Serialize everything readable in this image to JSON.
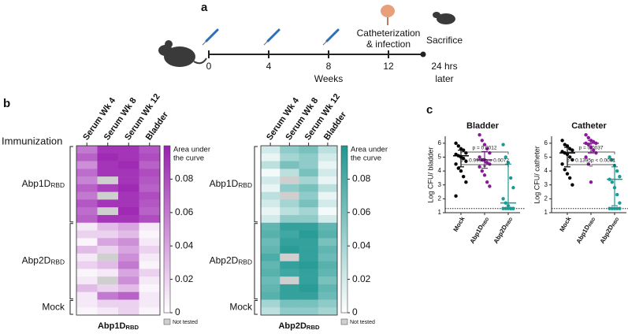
{
  "panel_labels": [
    "a",
    "b",
    "c"
  ],
  "timeline": {
    "weeks": [
      0,
      4,
      8,
      12
    ],
    "axis_label": "Weeks",
    "event_label": [
      "Catheterization",
      "& infection"
    ],
    "end_label": "Sacrifice",
    "end_time": [
      "24 hrs",
      "later"
    ]
  },
  "heatmaps": [
    {
      "row_header": "Immunization",
      "columns": [
        "Serum Wk 4",
        "Serum Wk 8",
        "Serum Wk 12",
        "Bladder"
      ],
      "row_groups": [
        {
          "label": {
            "main": "Abp1D",
            "sub": "RBD"
          },
          "rows": [
            [
              0.06,
              0.09,
              0.09,
              0.075
            ],
            [
              0.07,
              0.095,
              0.09,
              0.08
            ],
            [
              0.05,
              0.09,
              0.095,
              0.07
            ],
            [
              0.065,
              0.09,
              0.09,
              0.08
            ],
            [
              0.055,
              null,
              0.09,
              0.075
            ],
            [
              0.07,
              0.085,
              0.095,
              0.07
            ],
            [
              0.06,
              null,
              0.09,
              0.08
            ],
            [
              0.075,
              0.09,
              0.09,
              0.075
            ],
            [
              0.065,
              null,
              0.095,
              0.07
            ],
            [
              0.07,
              0.09,
              0.09,
              0.08
            ]
          ]
        },
        {
          "label": {
            "main": "Abp2D",
            "sub": "RBD"
          },
          "rows": [
            [
              0.01,
              0.03,
              0.04,
              0.01
            ],
            [
              0.02,
              0.02,
              0.03,
              0.005
            ],
            [
              0.005,
              0.04,
              0.05,
              0.01
            ],
            [
              0.03,
              0.02,
              0.04,
              0.02
            ],
            [
              0.01,
              null,
              0.05,
              0.01
            ],
            [
              0.02,
              0.03,
              0.06,
              0.005
            ],
            [
              0.005,
              0.01,
              0.04,
              0.02
            ],
            [
              0.01,
              null,
              0.05,
              0.01
            ],
            [
              0.03,
              0.02,
              0.03,
              0.005
            ],
            [
              0.01,
              0.06,
              0.07,
              0.01
            ]
          ]
        },
        {
          "label": "Mock",
          "rows": [
            [
              0.01,
              0.02,
              0.02,
              0.01
            ],
            [
              0.005,
              0.01,
              0.02,
              0.005
            ]
          ]
        }
      ],
      "colorbar": {
        "label": [
          "Area under",
          "the curve"
        ],
        "range": [
          0,
          0.1
        ],
        "ticks": [
          0,
          0.02,
          0.04,
          0.06,
          0.08
        ],
        "color": "#9a1fb0"
      },
      "not_tested": "Not tested",
      "title": {
        "main": "Abp1D",
        "sub": "RBD"
      }
    },
    {
      "columns": [
        "Serum Wk 4",
        "Serum Wk 8",
        "Serum Wk 12",
        "Bladder"
      ],
      "row_groups": [
        {
          "label": {
            "main": "Abp1D",
            "sub": "RBD"
          },
          "rows": [
            [
              0.02,
              0.05,
              0.06,
              0.03
            ],
            [
              0.01,
              0.04,
              0.05,
              0.02
            ],
            [
              0.03,
              0.06,
              0.05,
              0.01
            ],
            [
              0.005,
              0.03,
              0.06,
              0.02
            ],
            [
              0.02,
              null,
              0.04,
              0.01
            ],
            [
              0.01,
              0.05,
              0.06,
              0.03
            ],
            [
              0.03,
              null,
              0.05,
              0.01
            ],
            [
              0.02,
              0.04,
              0.06,
              0.02
            ],
            [
              0.01,
              0.03,
              0.04,
              0.005
            ],
            [
              0.02,
              0.05,
              0.05,
              0.02
            ]
          ]
        },
        {
          "label": {
            "main": "Abp2D",
            "sub": "RBD"
          },
          "rows": [
            [
              0.07,
              0.09,
              0.09,
              0.07
            ],
            [
              0.075,
              0.085,
              0.095,
              0.075
            ],
            [
              0.065,
              0.09,
              0.09,
              0.06
            ],
            [
              0.07,
              0.095,
              0.09,
              0.07
            ],
            [
              0.08,
              null,
              0.09,
              0.065
            ],
            [
              0.07,
              0.09,
              0.095,
              0.075
            ],
            [
              0.075,
              0.085,
              0.09,
              0.07
            ],
            [
              0.065,
              null,
              0.09,
              0.06
            ],
            [
              0.07,
              0.09,
              0.095,
              0.07
            ],
            [
              0.075,
              0.09,
              0.09,
              0.065
            ]
          ]
        },
        {
          "label": "Mock",
          "rows": [
            [
              0.04,
              0.06,
              0.06,
              0.05
            ],
            [
              0.03,
              0.05,
              0.05,
              0.04
            ]
          ]
        }
      ],
      "colorbar": {
        "label": [
          "Area under",
          "the curve"
        ],
        "range": [
          0,
          0.1
        ],
        "ticks": [
          0,
          0.02,
          0.04,
          0.06,
          0.08
        ],
        "color": "#1f9791"
      },
      "not_tested": "Not tested",
      "title": {
        "main": "Abp2D",
        "sub": "RBD"
      }
    }
  ],
  "scatter_plots": [
    {
      "title": "Bladder",
      "ylabel": "Log CFU/ bladder",
      "ylim": [
        1,
        6.5
      ],
      "yticks": [
        1,
        2,
        3,
        4,
        5,
        6
      ],
      "detection_limit": 1.3,
      "groups": [
        {
          "label": "Mock",
          "color": "#000000",
          "values": [
            6.0,
            5.8,
            5.6,
            5.5,
            5.3,
            5.2,
            5.1,
            5.0,
            4.9,
            4.7,
            4.5,
            4.2,
            4.0,
            3.6,
            3.2,
            2.2
          ],
          "median": 5.1,
          "q1": 4.3,
          "q3": 5.5
        },
        {
          "label": {
            "main": "Abp1D",
            "sub": "RBD"
          },
          "color": "#8b1a9b",
          "values": [
            6.6,
            6.2,
            5.9,
            5.6,
            5.3,
            5.0,
            4.8,
            4.8,
            4.6,
            4.5,
            4.3,
            4.0,
            3.7,
            3.2,
            2.9
          ],
          "median": 4.8,
          "q1": 4.2,
          "q3": 5.4
        },
        {
          "label": {
            "main": "Abp2D",
            "sub": "RBD"
          },
          "color": "#1a9a94",
          "values": [
            5.9,
            5.0,
            4.6,
            3.5,
            2.8,
            2.0,
            1.7,
            1.5,
            1.3,
            1.3,
            1.3,
            1.3,
            1.3,
            1.3,
            1.3
          ],
          "median": 1.7,
          "q1": 1.3,
          "q3": 4.5
        }
      ],
      "comparisons": [
        "p = 0.0012",
        "p > 0.9999",
        "p = 0.0072"
      ]
    },
    {
      "title": "Catheter",
      "ylabel": "Log CFU/ catheter",
      "ylim": [
        1,
        6.5
      ],
      "yticks": [
        1,
        2,
        3,
        4,
        5,
        6
      ],
      "detection_limit": 1.3,
      "groups": [
        {
          "label": "Mock",
          "color": "#000000",
          "values": [
            6.2,
            5.9,
            5.8,
            5.6,
            5.5,
            5.4,
            5.3,
            5.2,
            5.0,
            4.8,
            4.5,
            4.1,
            3.8,
            3.5,
            3.0
          ],
          "median": 5.3,
          "q1": 4.3,
          "q3": 5.7
        },
        {
          "label": {
            "main": "Abp1D",
            "sub": "RBD"
          },
          "color": "#8b1a9b",
          "values": [
            6.6,
            6.4,
            6.2,
            6.1,
            6.0,
            6.0,
            5.9,
            5.7,
            5.5,
            5.3,
            5.0,
            4.5,
            3.2
          ],
          "median": 6.0,
          "q1": 5.3,
          "q3": 6.2
        },
        {
          "label": {
            "main": "Abp2D",
            "sub": "RBD"
          },
          "color": "#1a9a94",
          "values": [
            5.0,
            4.8,
            4.4,
            4.0,
            3.6,
            3.4,
            3.2,
            2.8,
            2.3,
            1.7,
            1.3,
            1.3,
            1.3,
            1.3,
            1.3
          ],
          "median": 3.4,
          "q1": 1.5,
          "q3": 4.3
        }
      ],
      "comparisons": [
        "p = 0.0037",
        "p = 0.1395",
        "p < 0.0001"
      ]
    }
  ]
}
